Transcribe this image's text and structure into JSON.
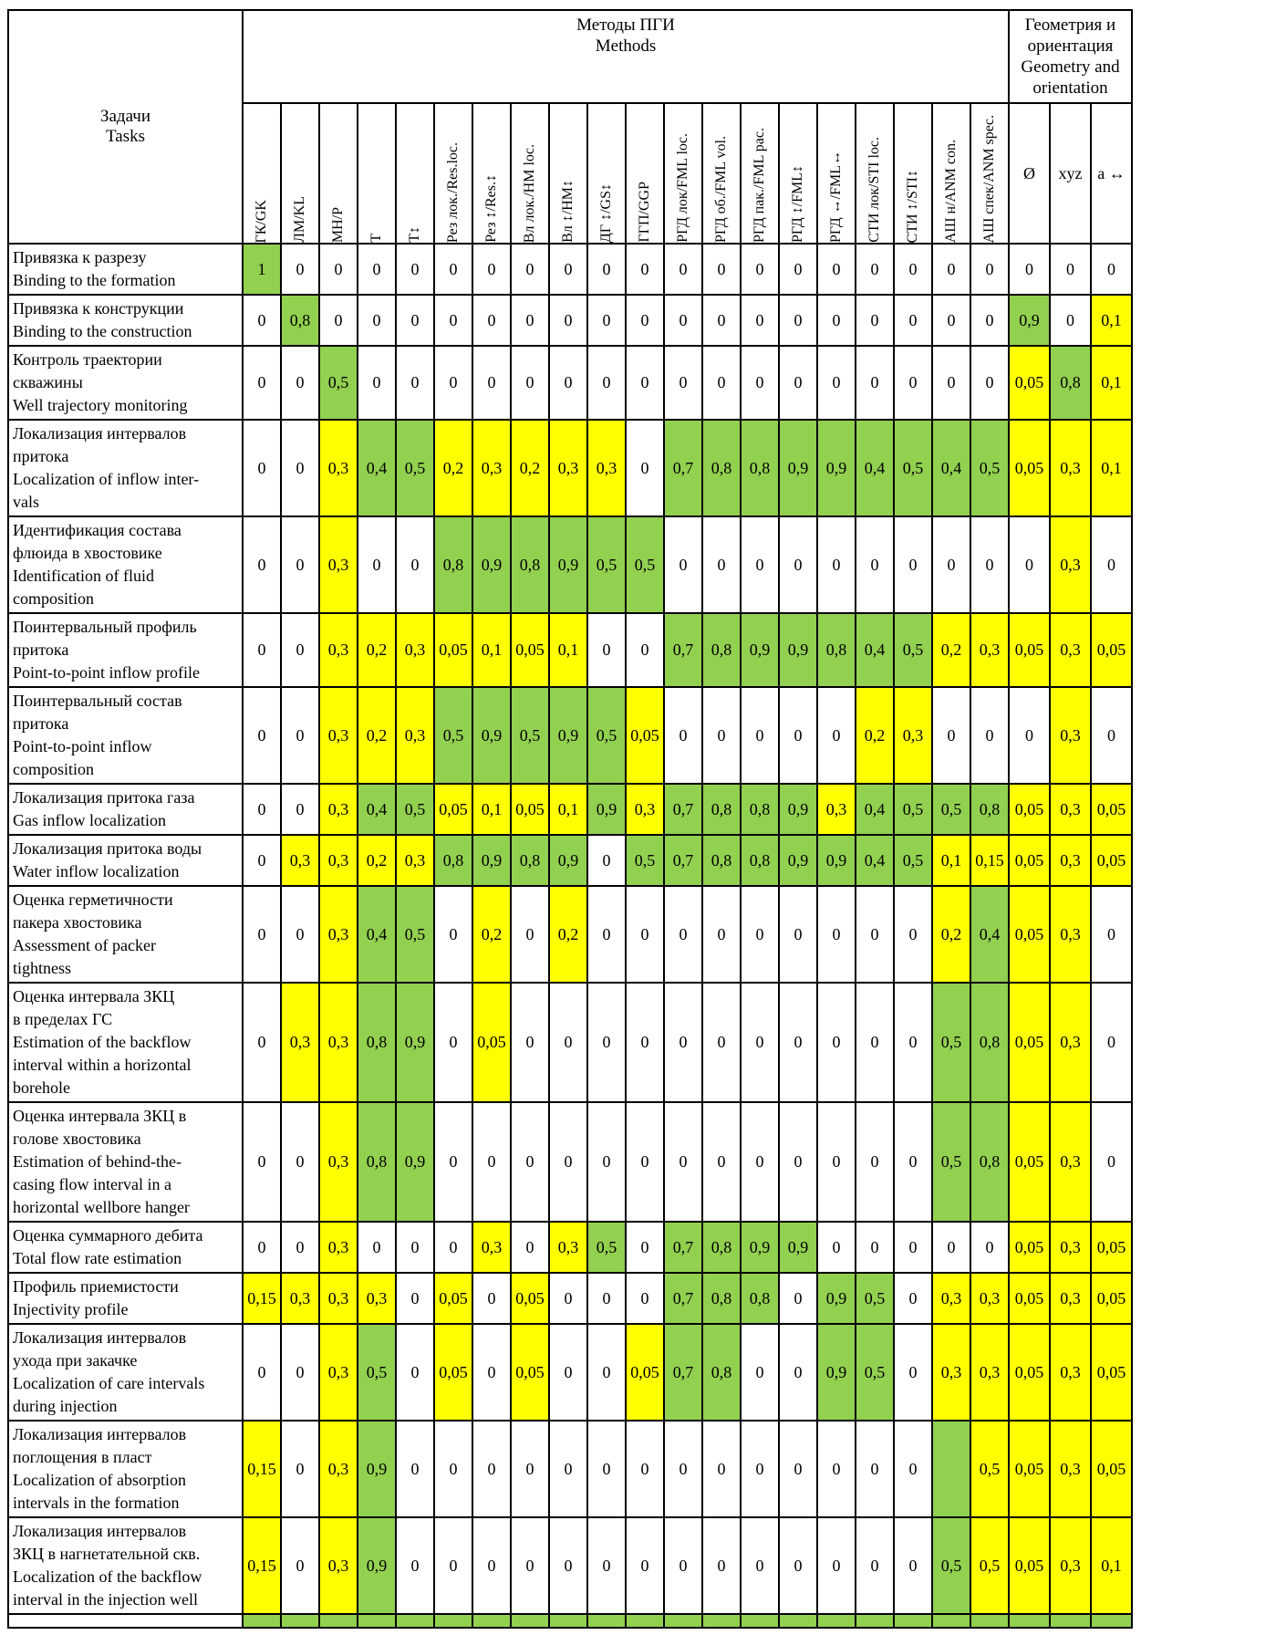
{
  "header": {
    "tasks": "Задачи\nTasks",
    "methods": "Методы ПГИ\nMethods",
    "geometry": "Геометрия и\nориентация\nGeometry and\norientation"
  },
  "colors": {
    "g": "#92d050",
    "y": "#ffff00",
    "w": "#ffffff"
  },
  "method_columns": [
    "ГК/GK",
    "ЛМ/KL",
    "МН/Р",
    "Т",
    "Т↕",
    "Рез лок./Res.loc.",
    "Рез ↕/Res.↕",
    "Вл лок./НМ loc.",
    "Вл ↕/НМ↕",
    "ДГ ↕/GS↕",
    "ГГП/GGP",
    "РГД лок/FML loc.",
    "РГД об./FML vol.",
    "РГД пак./FML рас.",
    "РГД ↕/FML↕",
    "РГД ↔/FML↔",
    "СТИ лок/STI loc.",
    "СТИ ↕/STI↕",
    "АШ н/ANM con.",
    "АШ спек/ANM spec."
  ],
  "geometry_columns": [
    "Ø",
    "xyz",
    "a ↔"
  ],
  "rows": [
    {
      "task": "Привязка к разрезу\nBinding to the formation",
      "cells": [
        "1:g",
        "0:w",
        "0:w",
        "0:w",
        "0:w",
        "0:w",
        "0:w",
        "0:w",
        "0:w",
        "0:w",
        "0:w",
        "0:w",
        "0:w",
        "0:w",
        "0:w",
        "0:w",
        "0:w",
        "0:w",
        "0:w",
        "0:w",
        "0:w",
        "0:w",
        "0:w"
      ]
    },
    {
      "task": "Привязка к конструкции\nBinding to the construction",
      "cells": [
        "0:w",
        "0,8:g",
        "0:w",
        "0:w",
        "0:w",
        "0:w",
        "0:w",
        "0:w",
        "0:w",
        "0:w",
        "0:w",
        "0:w",
        "0:w",
        "0:w",
        "0:w",
        "0:w",
        "0:w",
        "0:w",
        "0:w",
        "0:w",
        "0,9:g",
        "0:w",
        "0,1:y"
      ]
    },
    {
      "task": "Контроль траектории\nскважины\nWell trajectory monitoring",
      "cells": [
        "0:w",
        "0:w",
        "0,5:g",
        "0:w",
        "0:w",
        "0:w",
        "0:w",
        "0:w",
        "0:w",
        "0:w",
        "0:w",
        "0:w",
        "0:w",
        "0:w",
        "0:w",
        "0:w",
        "0:w",
        "0:w",
        "0:w",
        "0:w",
        "0,05:y",
        "0,8:g",
        "0,1:y"
      ]
    },
    {
      "task": "Локализация интервалов\nпритока\nLocalization of inflow inter-\nvals",
      "cells": [
        "0:w",
        "0:w",
        "0,3:y",
        "0,4:g",
        "0,5:g",
        "0,2:y",
        "0,3:y",
        "0,2:y",
        "0,3:y",
        "0,3:y",
        "0:w",
        "0,7:g",
        "0,8:g",
        "0,8:g",
        "0,9:g",
        "0,9:g",
        "0,4:g",
        "0,5:g",
        "0,4:g",
        "0,5:g",
        "0,05:y",
        "0,3:y",
        "0,1:y"
      ]
    },
    {
      "task": "Идентификация состава\nфлюида в хвостовике\nIdentification of fluid\ncomposition",
      "cells": [
        "0:w",
        "0:w",
        "0,3:y",
        "0:w",
        "0:w",
        "0,8:g",
        "0,9:g",
        "0,8:g",
        "0,9:g",
        "0,5:g",
        "0,5:g",
        "0:w",
        "0:w",
        "0:w",
        "0:w",
        "0:w",
        "0:w",
        "0:w",
        "0:w",
        "0:w",
        "0:w",
        "0,3:y",
        "0:w"
      ]
    },
    {
      "task": "Поинтервальный профиль\nпритока\nPoint-to-point inflow profile",
      "cells": [
        "0:w",
        "0:w",
        "0,3:y",
        "0,2:y",
        "0,3:y",
        "0,05:y",
        "0,1:y",
        "0,05:y",
        "0,1:y",
        "0:w",
        "0:w",
        "0,7:g",
        "0,8:g",
        "0,9:g",
        "0,9:g",
        "0,8:g",
        "0,4:g",
        "0,5:g",
        "0,2:y",
        "0,3:y",
        "0,05:y",
        "0,3:y",
        "0,05:y"
      ]
    },
    {
      "task": "Поинтервальный состав\nпритока\nPoint-to-point inflow\ncomposition",
      "cells": [
        "0:w",
        "0:w",
        "0,3:y",
        "0,2:y",
        "0,3:y",
        "0,5:g",
        "0,9:g",
        "0,5:g",
        "0,9:g",
        "0,5:g",
        "0,05:y",
        "0:w",
        "0:w",
        "0:w",
        "0:w",
        "0:w",
        "0,2:y",
        "0,3:y",
        "0:w",
        "0:w",
        "0:w",
        "0,3:y",
        "0:w"
      ]
    },
    {
      "task": "Локализация притока газа\nGas inflow localization",
      "cells": [
        "0:w",
        "0:w",
        "0,3:y",
        "0,4:g",
        "0,5:g",
        "0,05:y",
        "0,1:y",
        "0,05:y",
        "0,1:y",
        "0,9:g",
        "0,3:y",
        "0,7:g",
        "0,8:g",
        "0,8:g",
        "0,9:g",
        "0,3:y",
        "0,4:g",
        "0,5:g",
        "0,5:g",
        "0,8:g",
        "0,05:y",
        "0,3:y",
        "0,05:y"
      ]
    },
    {
      "task": "Локализация притока воды\nWater inflow localization",
      "cells": [
        "0:w",
        "0,3:y",
        "0,3:y",
        "0,2:y",
        "0,3:y",
        "0,8:g",
        "0,9:g",
        "0,8:g",
        "0,9:g",
        "0:w",
        "0,5:g",
        "0,7:g",
        "0,8:g",
        "0,8:g",
        "0,9:g",
        "0,9:g",
        "0,4:g",
        "0,5:g",
        "0,1:y",
        "0,15:y",
        "0,05:y",
        "0,3:y",
        "0,05:y"
      ]
    },
    {
      "task": "Оценка герметичности\nпакера хвостовика\nAssessment of packer\ntightness",
      "cells": [
        "0:w",
        "0:w",
        "0,3:y",
        "0,4:g",
        "0,5:g",
        "0:w",
        "0,2:y",
        "0:w",
        "0,2:y",
        "0:w",
        "0:w",
        "0:w",
        "0:w",
        "0:w",
        "0:w",
        "0:w",
        "0:w",
        "0:w",
        "0,2:y",
        "0,4:g",
        "0,05:y",
        "0,3:y",
        "0:w"
      ]
    },
    {
      "task": "Оценка интервала ЗКЦ\nв пределах ГС\nEstimation of the backflow\ninterval within a horizontal\nborehole",
      "cells": [
        "0:w",
        "0,3:y",
        "0,3:y",
        "0,8:g",
        "0,9:g",
        "0:w",
        "0,05:y",
        "0:w",
        "0:w",
        "0:w",
        "0:w",
        "0:w",
        "0:w",
        "0:w",
        "0:w",
        "0:w",
        "0:w",
        "0:w",
        "0,5:g",
        "0,8:g",
        "0,05:y",
        "0,3:y",
        "0:w"
      ]
    },
    {
      "task": "Оценка интервала ЗКЦ в\nголове хвостовика\nEstimation of behind-the-\ncasing flow interval in a\nhorizontal wellbore hanger",
      "cells": [
        "0:w",
        "0:w",
        "0,3:y",
        "0,8:g",
        "0,9:g",
        "0:w",
        "0:w",
        "0:w",
        "0:w",
        "0:w",
        "0:w",
        "0:w",
        "0:w",
        "0:w",
        "0:w",
        "0:w",
        "0:w",
        "0:w",
        "0,5:g",
        "0,8:g",
        "0,05:y",
        "0,3:y",
        "0:w"
      ]
    },
    {
      "task": "Оценка суммарного дебита\nTotal flow rate estimation",
      "cells": [
        "0:w",
        "0:w",
        "0,3:y",
        "0:w",
        "0:w",
        "0:w",
        "0,3:y",
        "0:w",
        "0,3:y",
        "0,5:g",
        "0:w",
        "0,7:g",
        "0,8:g",
        "0,9:g",
        "0,9:g",
        "0:w",
        "0:w",
        "0:w",
        "0:w",
        "0:w",
        "0,05:y",
        "0,3:y",
        "0,05:y"
      ]
    },
    {
      "task": "Профиль приемистости\nInjectivity profile",
      "cells": [
        "0,15:y",
        "0,3:y",
        "0,3:y",
        "0,3:y",
        "0:w",
        "0,05:y",
        "0:w",
        "0,05:y",
        "0:w",
        "0:w",
        "0:w",
        "0,7:g",
        "0,8:g",
        "0,8:g",
        "0:w",
        "0,9:g",
        "0,5:g",
        "0:w",
        "0,3:y",
        "0,3:y",
        "0,05:y",
        "0,3:y",
        "0,05:y"
      ]
    },
    {
      "task": "Локализация интервалов\nухода при закачке\nLocalization of care intervals\nduring injection",
      "cells": [
        "0:w",
        "0:w",
        "0,3:y",
        "0,5:g",
        "0:w",
        "0,05:y",
        "0:w",
        "0,05:y",
        "0:w",
        "0:w",
        "0,05:y",
        "0,7:g",
        "0,8:g",
        "0:w",
        "0:w",
        "0,9:g",
        "0,5:g",
        "0:w",
        "0,3:y",
        "0,3:y",
        "0,05:y",
        "0,3:y",
        "0,05:y"
      ]
    },
    {
      "task": "Локализация интервалов\nпоглощения в пласт\nLocalization of absorption\nintervals in the formation",
      "cells": [
        "0,15:y",
        "0:w",
        "0,3:y",
        "0,9:g",
        "0:w",
        "0:w",
        "0:w",
        "0:w",
        "0:w",
        "0:w",
        "0:w",
        "0:w",
        "0:w",
        "0:w",
        "0:w",
        "0:w",
        "0:w",
        "0:w",
        ":g",
        "0,5:y",
        "0,05:y",
        "0,3:y",
        "0,05:y"
      ]
    },
    {
      "task": "Локализация интервалов\nЗКЦ в нагнетательной скв.\nLocalization of the backflow\ninterval in the injection well",
      "cells": [
        "0,15:y",
        "0:w",
        "0,3:y",
        "0,9:g",
        "0:w",
        "0:w",
        "0:w",
        "0:w",
        "0:w",
        "0:w",
        "0:w",
        "0:w",
        "0:w",
        "0:w",
        "0:w",
        "0:w",
        "0:w",
        "0:w",
        "0,5:g",
        "0,5:y",
        "0,05:y",
        "0,3:y",
        "0,1:y"
      ]
    }
  ],
  "partial_row": {
    "colors": [
      "g",
      "g",
      "g",
      "g",
      "g",
      "g",
      "g",
      "g",
      "g",
      "g",
      "g",
      "g",
      "g",
      "g",
      "g",
      "g",
      "g",
      "g",
      "g",
      "g",
      "g",
      "g",
      "g"
    ]
  }
}
